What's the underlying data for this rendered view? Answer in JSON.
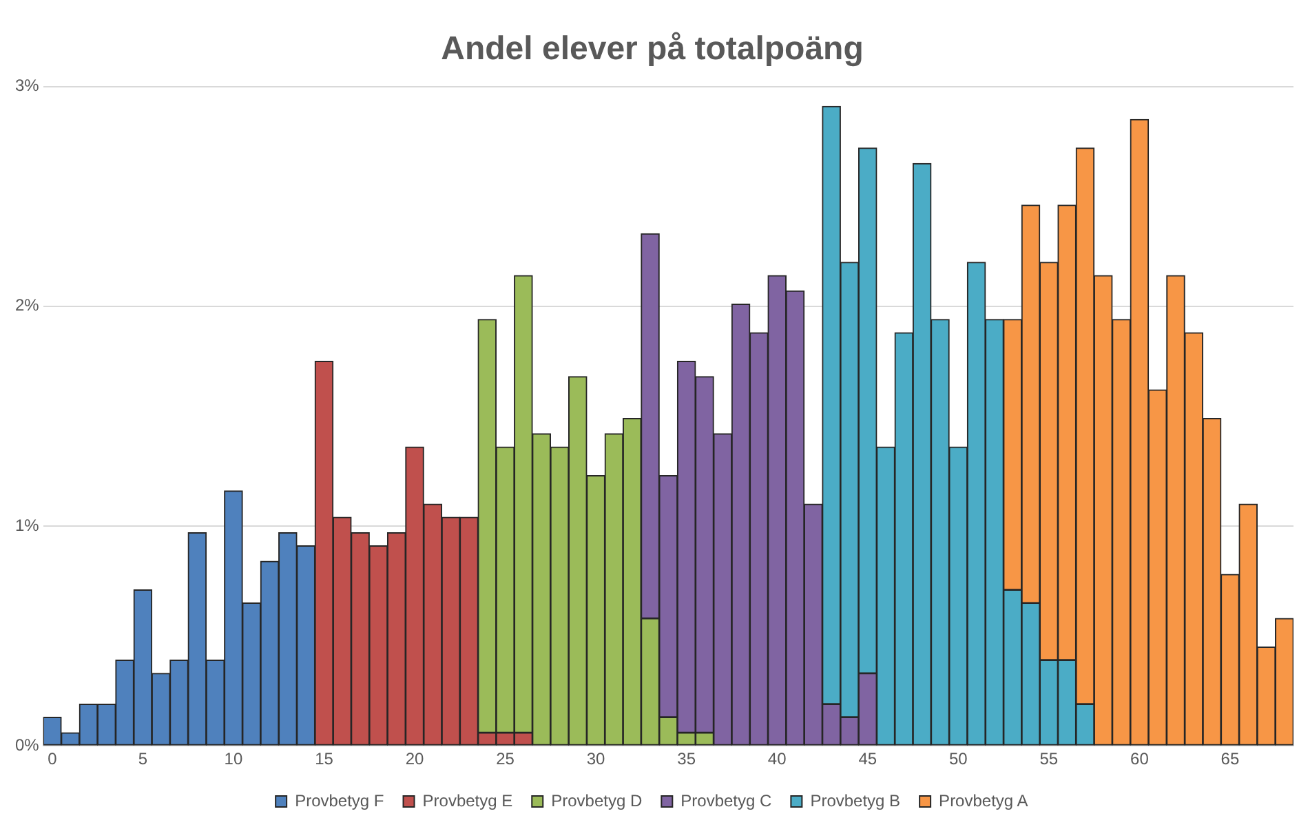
{
  "chart_data": {
    "type": "bar",
    "title": "Andel elever på totalpoäng",
    "stacked": true,
    "grid": "y",
    "legend": "bottom",
    "categories": [
      "0",
      null,
      null,
      null,
      null,
      "5",
      null,
      null,
      null,
      null,
      "10",
      null,
      null,
      null,
      null,
      "15",
      null,
      null,
      null,
      null,
      "20",
      null,
      null,
      null,
      null,
      "25",
      null,
      null,
      null,
      null,
      "30",
      null,
      null,
      null,
      null,
      "35",
      null,
      null,
      null,
      null,
      "40",
      null,
      null,
      null,
      null,
      "45",
      null,
      null,
      null,
      null,
      "50",
      null,
      null,
      null,
      null,
      "55",
      null,
      null,
      null,
      null,
      "60",
      null,
      null,
      null,
      null,
      "65",
      null,
      null,
      null
    ],
    "ylim": [
      0,
      3
    ],
    "yticks": [
      {
        "value": 0,
        "label": "0%"
      },
      {
        "value": 1,
        "label": "1%"
      },
      {
        "value": 2,
        "label": "2%"
      },
      {
        "value": 3,
        "label": "3%"
      }
    ],
    "series": [
      {
        "name": "Provbetyg F",
        "color": "#4f81bd",
        "values": [
          0.13,
          0.06,
          0.19,
          0.19,
          0.39,
          0.71,
          0.33,
          0.39,
          0.97,
          0.39,
          1.16,
          0.65,
          0.84,
          0.97,
          0.91,
          null,
          null,
          null,
          null,
          null,
          null,
          null,
          null,
          null,
          null,
          null,
          null,
          null,
          null,
          null,
          null,
          null,
          null,
          null,
          null,
          null,
          null,
          null,
          null,
          null,
          null,
          null,
          null,
          null,
          null,
          null,
          null,
          null,
          null,
          null,
          null,
          null,
          null,
          null,
          null,
          null,
          null,
          null,
          null,
          null,
          null,
          null,
          null,
          null,
          null,
          null,
          null,
          null,
          null
        ]
      },
      {
        "name": "Provbetyg E",
        "color": "#c0504d",
        "values": [
          null,
          null,
          null,
          null,
          null,
          null,
          null,
          null,
          null,
          null,
          null,
          null,
          null,
          null,
          null,
          1.75,
          1.04,
          0.97,
          0.91,
          0.97,
          1.36,
          1.1,
          1.04,
          1.04,
          0.06,
          0.06,
          0.06,
          null,
          null,
          null,
          null,
          null,
          null,
          null,
          null,
          null,
          null,
          null,
          null,
          null,
          null,
          null,
          null,
          null,
          null,
          null,
          null,
          null,
          null,
          null,
          null,
          null,
          null,
          null,
          null,
          null,
          null,
          null,
          null,
          null,
          null,
          null,
          null,
          null,
          null,
          null,
          null,
          null,
          null
        ]
      },
      {
        "name": "Provbetyg D",
        "color": "#9bbb59",
        "values": [
          null,
          null,
          null,
          null,
          null,
          null,
          null,
          null,
          null,
          null,
          null,
          null,
          null,
          null,
          null,
          null,
          null,
          null,
          null,
          null,
          null,
          null,
          null,
          null,
          1.88,
          1.3,
          2.08,
          1.42,
          1.36,
          1.68,
          1.23,
          1.42,
          1.49,
          0.58,
          0.13,
          0.06,
          0.06,
          null,
          null,
          null,
          null,
          null,
          null,
          null,
          null,
          null,
          null,
          null,
          null,
          null,
          null,
          null,
          null,
          null,
          null,
          null,
          null,
          null,
          null,
          null,
          null,
          null,
          null,
          null,
          null,
          null,
          null,
          null,
          null
        ]
      },
      {
        "name": "Provbetyg C",
        "color": "#8064a2",
        "values": [
          null,
          null,
          null,
          null,
          null,
          null,
          null,
          null,
          null,
          null,
          null,
          null,
          null,
          null,
          null,
          null,
          null,
          null,
          null,
          null,
          null,
          null,
          null,
          null,
          null,
          null,
          null,
          null,
          null,
          null,
          null,
          null,
          null,
          1.75,
          1.1,
          1.69,
          1.62,
          1.42,
          2.01,
          1.88,
          2.14,
          2.07,
          1.1,
          0.19,
          0.13,
          0.33,
          null,
          null,
          null,
          null,
          null,
          null,
          null,
          null,
          null,
          null,
          null,
          null,
          null,
          null,
          null,
          null,
          null,
          null,
          null,
          null,
          null,
          null,
          null
        ]
      },
      {
        "name": "Provbetyg B",
        "color": "#4bacc6",
        "values": [
          null,
          null,
          null,
          null,
          null,
          null,
          null,
          null,
          null,
          null,
          null,
          null,
          null,
          null,
          null,
          null,
          null,
          null,
          null,
          null,
          null,
          null,
          null,
          null,
          null,
          null,
          null,
          null,
          null,
          null,
          null,
          null,
          null,
          null,
          null,
          null,
          null,
          null,
          null,
          null,
          null,
          null,
          null,
          2.72,
          2.07,
          2.39,
          1.36,
          1.88,
          2.65,
          1.94,
          1.36,
          2.2,
          1.94,
          0.71,
          0.65,
          0.39,
          0.39,
          0.19,
          null,
          null,
          null,
          null,
          null,
          null,
          null,
          null,
          null,
          null,
          null
        ]
      },
      {
        "name": "Provbetyg A",
        "color": "#f79646",
        "values": [
          null,
          null,
          null,
          null,
          null,
          null,
          null,
          null,
          null,
          null,
          null,
          null,
          null,
          null,
          null,
          null,
          null,
          null,
          null,
          null,
          null,
          null,
          null,
          null,
          null,
          null,
          null,
          null,
          null,
          null,
          null,
          null,
          null,
          null,
          null,
          null,
          null,
          null,
          null,
          null,
          null,
          null,
          null,
          null,
          null,
          null,
          null,
          null,
          null,
          null,
          null,
          null,
          null,
          1.23,
          1.81,
          1.81,
          2.07,
          2.53,
          2.14,
          1.94,
          2.85,
          1.62,
          2.14,
          1.88,
          1.49,
          0.78,
          1.1,
          0.45,
          0.58
        ]
      }
    ]
  }
}
